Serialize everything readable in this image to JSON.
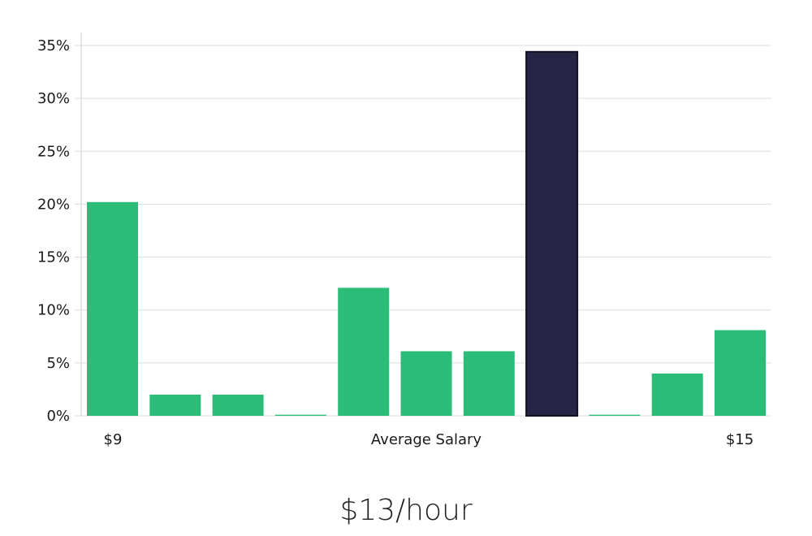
{
  "chart_data": {
    "type": "bar",
    "categories": [
      "1",
      "2",
      "3",
      "4",
      "5",
      "6",
      "7",
      "8",
      "9",
      "10",
      "11"
    ],
    "values": [
      20.2,
      2.0,
      2.0,
      0.1,
      12.1,
      6.1,
      6.1,
      34.4,
      0.1,
      4.0,
      8.1
    ],
    "highlight_index": 7,
    "colors": {
      "bar": "#2bbd78",
      "highlight": "#262444",
      "highlight_border": "#111122"
    },
    "ylim": [
      0,
      35
    ],
    "yticks": [
      0,
      5,
      10,
      15,
      20,
      25,
      30,
      35
    ],
    "ytick_labels": [
      "0%",
      "5%",
      "10%",
      "15%",
      "20%",
      "25%",
      "30%",
      "35%"
    ],
    "x_labels": {
      "left": "$9",
      "center": "Average Salary",
      "right": "$15"
    },
    "grid": true
  },
  "headline": "$13/hour"
}
